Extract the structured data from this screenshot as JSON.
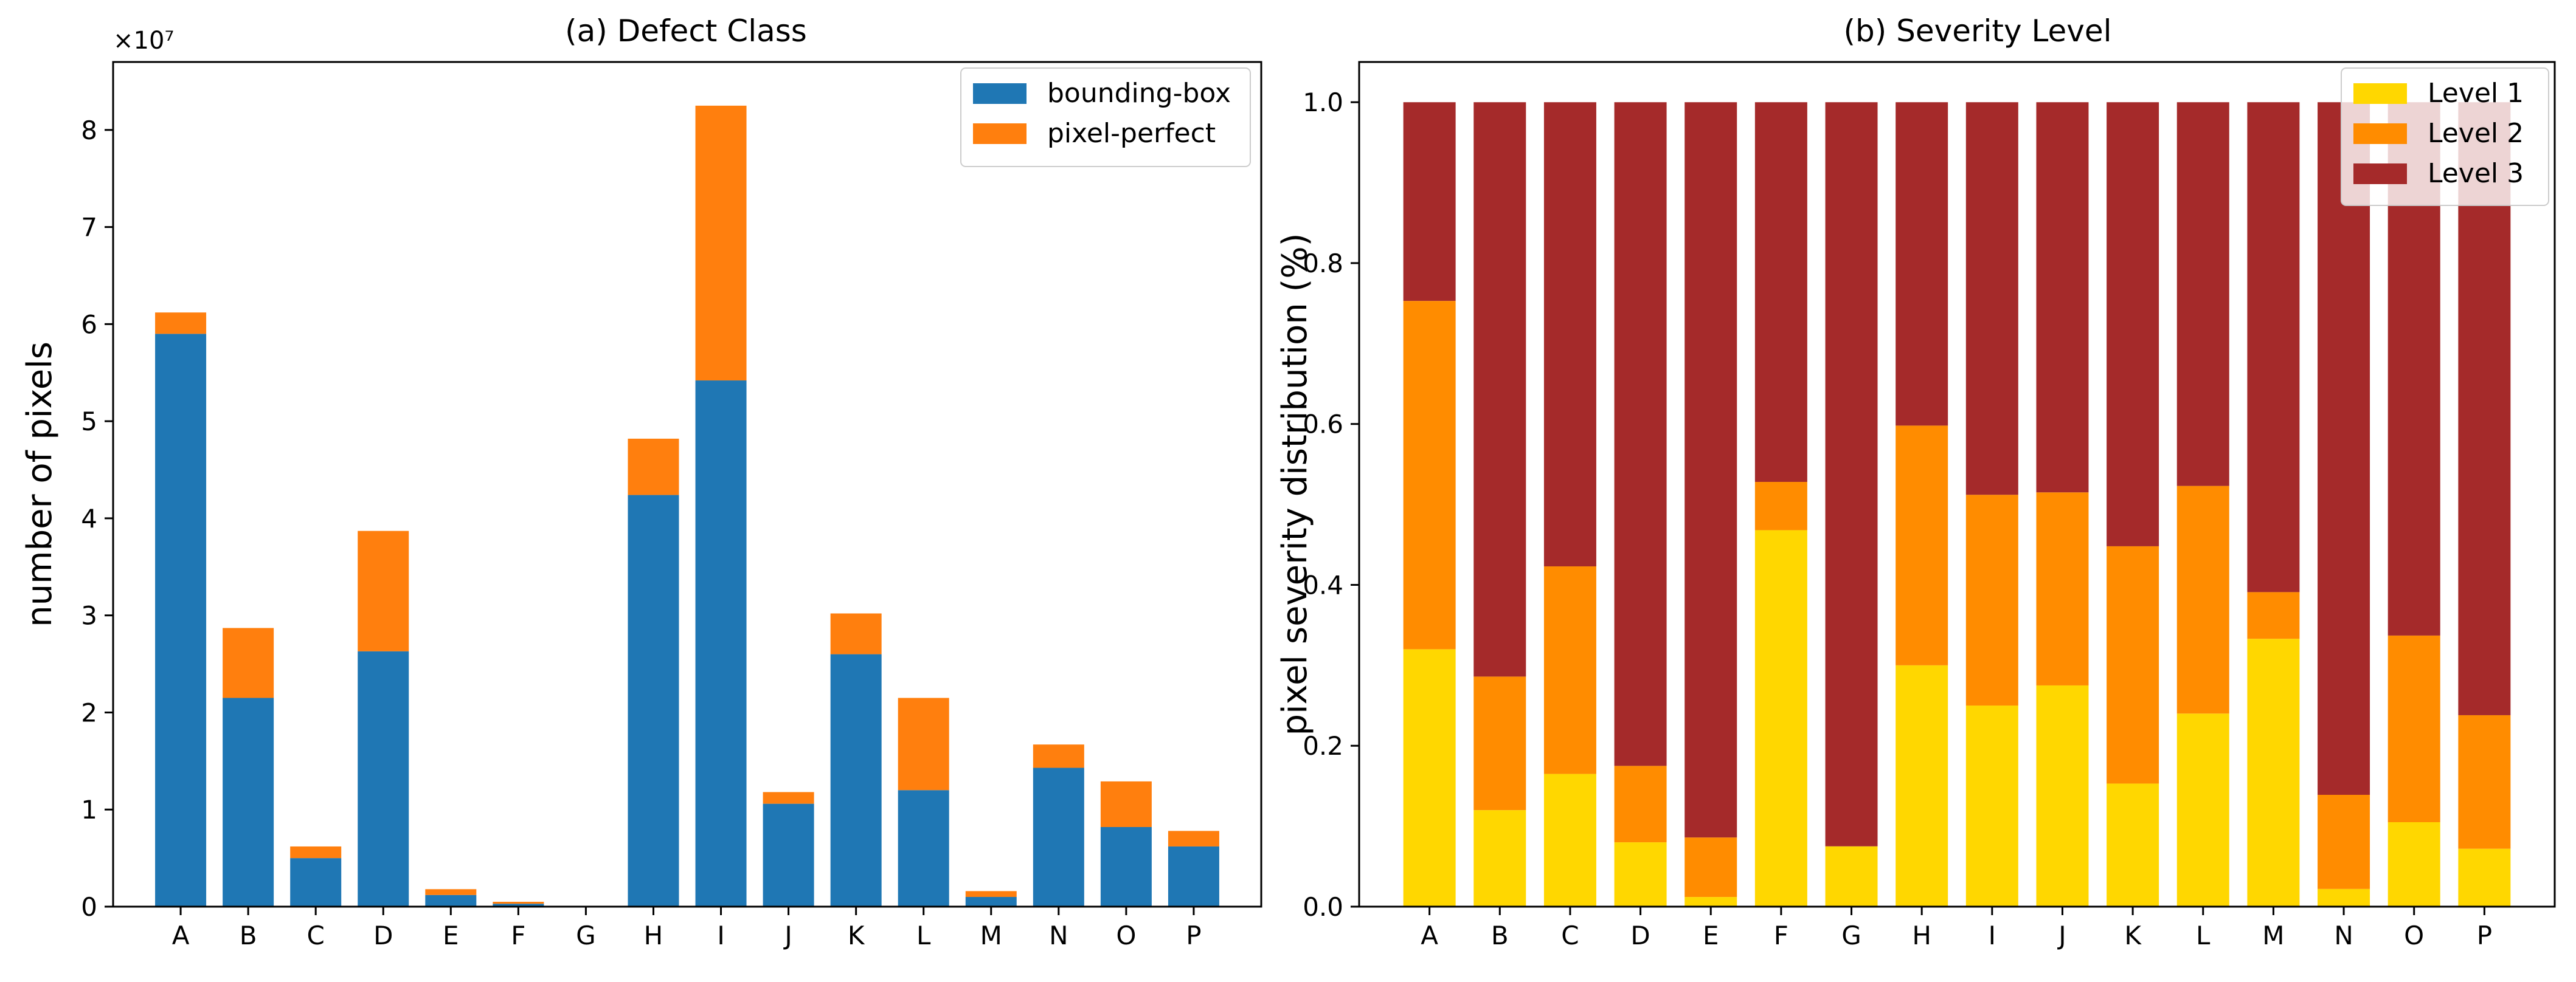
{
  "chart_data": [
    {
      "type": "bar",
      "stacked": true,
      "title": "(a) Defect Class",
      "xlabel": "",
      "ylabel": "number of pixels",
      "y_scale_label": "×10⁷",
      "ylim": [
        0,
        8.7
      ],
      "yticks": [
        0,
        1,
        2,
        3,
        4,
        5,
        6,
        7,
        8
      ],
      "ytick_labels": [
        "0",
        "1",
        "2",
        "3",
        "4",
        "5",
        "6",
        "7",
        "8"
      ],
      "legend_position": "top-right",
      "categories": [
        "A",
        "B",
        "C",
        "D",
        "E",
        "F",
        "G",
        "H",
        "I",
        "J",
        "K",
        "L",
        "M",
        "N",
        "O",
        "P"
      ],
      "series": [
        {
          "name": "bounding-box",
          "color": "#1f77b4",
          "values": [
            5.9,
            2.15,
            0.5,
            2.63,
            0.12,
            0.03,
            0.0,
            4.24,
            5.42,
            1.06,
            2.6,
            1.2,
            0.1,
            1.43,
            0.82,
            0.62
          ]
        },
        {
          "name": "pixel-perfect",
          "color": "#ff7f0e",
          "values": [
            0.22,
            0.72,
            0.12,
            1.24,
            0.06,
            0.02,
            0.0,
            0.58,
            2.83,
            0.12,
            0.42,
            0.95,
            0.06,
            0.24,
            0.47,
            0.16
          ]
        }
      ]
    },
    {
      "type": "bar",
      "stacked": true,
      "title": "(b) Severity Level",
      "xlabel": "",
      "ylabel": "pixel severity distribution (%)",
      "ylim": [
        0,
        1.05
      ],
      "yticks": [
        0,
        0.2,
        0.4,
        0.6,
        0.8,
        1.0
      ],
      "ytick_labels": [
        "0.0",
        "0.2",
        "0.4",
        "0.6",
        "0.8",
        "1.0"
      ],
      "legend_position": "top-right",
      "categories": [
        "A",
        "B",
        "C",
        "D",
        "E",
        "F",
        "G",
        "H",
        "I",
        "J",
        "K",
        "L",
        "M",
        "N",
        "O",
        "P"
      ],
      "series": [
        {
          "name": "Level 1",
          "color": "#ffd700",
          "values": [
            0.32,
            0.12,
            0.165,
            0.08,
            0.012,
            0.468,
            0.075,
            0.3,
            0.25,
            0.275,
            0.153,
            0.24,
            0.333,
            0.022,
            0.105,
            0.072
          ]
        },
        {
          "name": "Level 2",
          "color": "#ff8c00",
          "values": [
            0.433,
            0.166,
            0.258,
            0.095,
            0.074,
            0.06,
            0.0,
            0.298,
            0.262,
            0.24,
            0.295,
            0.283,
            0.058,
            0.117,
            0.232,
            0.166
          ]
        },
        {
          "name": "Level 3",
          "color": "#a52a2a",
          "values": [
            0.247,
            0.714,
            0.577,
            0.825,
            0.914,
            0.472,
            0.925,
            0.402,
            0.488,
            0.485,
            0.552,
            0.477,
            0.609,
            0.861,
            0.663,
            0.762
          ]
        }
      ]
    }
  ]
}
